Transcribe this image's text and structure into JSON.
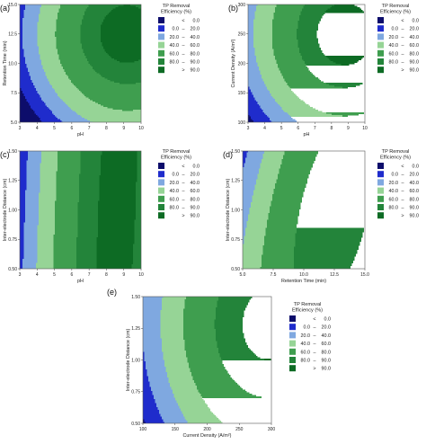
{
  "figure": {
    "legend": {
      "title_line1": "TP Removal",
      "title_line2": "Efficiency (%)",
      "entries": [
        {
          "low": "",
          "sep": "<",
          "high": "0.0",
          "color": "#0d0d6b"
        },
        {
          "low": "0.0",
          "sep": "–",
          "high": "20.0",
          "color": "#1f2ccc"
        },
        {
          "low": "20.0",
          "sep": "–",
          "high": "40.0",
          "color": "#7fa8e0"
        },
        {
          "low": "40.0",
          "sep": "–",
          "high": "60.0",
          "color": "#96d496"
        },
        {
          "low": "60.0",
          "sep": "–",
          "high": "80.0",
          "color": "#3f9e4f"
        },
        {
          "low": "80.0",
          "sep": "–",
          "high": "90.0",
          "color": "#23843a"
        },
        {
          "low": "",
          "sep": ">",
          "high": "90.0",
          "color": "#0d6b24"
        }
      ]
    }
  },
  "chart_data": [
    {
      "panel": "(a)",
      "type": "contour",
      "xlabel": "pH",
      "ylabel": "Retention Time (min)",
      "xlim": [
        3,
        10
      ],
      "ylim": [
        5.0,
        15.0
      ],
      "xticks": [
        "3",
        "4",
        "5",
        "6",
        "7",
        "8",
        "9",
        "10"
      ],
      "yticks": [
        "5.0",
        "7.5",
        "10.0",
        "12.5",
        "15.0"
      ],
      "levels": [
        0,
        20,
        40,
        60,
        80,
        90
      ],
      "z_model": {
        "kind": "ellipse",
        "cx": 9.2,
        "cy": 12.5,
        "ax": 7.0,
        "ay": 11.0,
        "peak": 95
      },
      "z_range": [
        -5,
        95
      ]
    },
    {
      "panel": "(b)",
      "type": "contour",
      "xlabel": "pH",
      "ylabel": "Current Density (A/m²)",
      "xlim": [
        3,
        10
      ],
      "ylim": [
        100,
        300
      ],
      "xticks": [
        "3",
        "4",
        "5",
        "6",
        "7",
        "8",
        "9",
        "10"
      ],
      "yticks": [
        "100",
        "150",
        "200",
        "250",
        "300"
      ],
      "levels": [
        0,
        20,
        40,
        60,
        80,
        90
      ],
      "z_model": {
        "kind": "ellipse",
        "cx": 8.8,
        "cy": 250,
        "ax": 7.4,
        "ay": 235,
        "peak": 95
      },
      "z_range": [
        -5,
        95
      ]
    },
    {
      "panel": "(c)",
      "type": "contour",
      "xlabel": "pH",
      "ylabel": "Inter-electrode Distance (cm)",
      "xlim": [
        3,
        10
      ],
      "ylim": [
        0.5,
        1.5
      ],
      "xticks": [
        "3",
        "4",
        "5",
        "6",
        "7",
        "8",
        "9",
        "10"
      ],
      "yticks": [
        "0.50",
        "0.75",
        "1.00",
        "1.25",
        "1.50"
      ],
      "levels": [
        0,
        20,
        40,
        60,
        80,
        90
      ],
      "z_model": {
        "kind": "bands",
        "cx": 8.6,
        "cy": 1.0,
        "ax": 6.2,
        "ay": 9.0,
        "tilt": 0.45,
        "peak": 93
      },
      "z_range": [
        5,
        93
      ]
    },
    {
      "panel": "(d)",
      "type": "contour",
      "xlabel": "Retention Time (min)",
      "ylabel": "Inter-electrode Distance (cm)",
      "xlim": [
        5.0,
        15.0
      ],
      "ylim": [
        0.5,
        1.5
      ],
      "xticks": [
        "5.0",
        "7.5",
        "10.0",
        "12.5",
        "15.0"
      ],
      "yticks": [
        "0.50",
        "0.75",
        "1.00",
        "1.25",
        "1.50"
      ],
      "levels": [
        40,
        60,
        80
      ],
      "z_model": {
        "kind": "bands",
        "cx": 12.5,
        "cy": 1.0,
        "ax": 10.0,
        "ay": 3.0,
        "tilt": 2.0,
        "peak": 88
      },
      "z_range": [
        40,
        88
      ]
    },
    {
      "panel": "(e)",
      "type": "contour",
      "xlabel": "Current Density (A/m²)",
      "ylabel": "Inter-electrode Distance (cm)",
      "xlim": [
        100,
        300
      ],
      "ylim": [
        0.5,
        1.5
      ],
      "xticks": [
        "100",
        "150",
        "200",
        "250",
        "300"
      ],
      "yticks": [
        "0.50",
        "0.75",
        "1.00",
        "1.25",
        "1.50"
      ],
      "levels": [
        60,
        80,
        90
      ],
      "z_model": {
        "kind": "ellipse",
        "cx": 295,
        "cy": 1.28,
        "ax": 230,
        "ay": 1.6,
        "peak": 93
      },
      "z_range": [
        55,
        93
      ]
    }
  ]
}
